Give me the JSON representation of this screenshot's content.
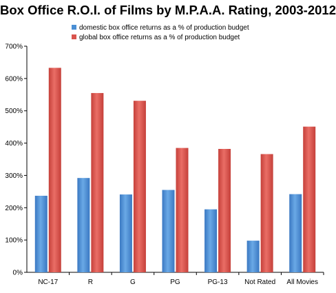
{
  "chart_data": {
    "type": "bar",
    "title": "Box Office R.O.I. of Films by M.P.A.A. Rating, 2003-2012",
    "xlabel": "",
    "ylabel": "",
    "categories": [
      "NC-17",
      "R",
      "G",
      "PG",
      "PG-13",
      "Not Rated",
      "All Movies"
    ],
    "series": [
      {
        "name": "domestic box office returns as a % of production budget",
        "color": "#4a8fd4",
        "values": [
          237,
          292,
          241,
          255,
          195,
          98,
          242
        ]
      },
      {
        "name": "global box office returns as a % of production budget",
        "color": "#d9544d",
        "values": [
          633,
          555,
          531,
          385,
          382,
          366,
          451
        ]
      }
    ],
    "yticks": [
      "0%",
      "100%",
      "200%",
      "300%",
      "400%",
      "500%",
      "600%",
      "700%"
    ],
    "ylim": [
      0,
      700
    ],
    "grid": false,
    "legend_position": "top-left"
  }
}
